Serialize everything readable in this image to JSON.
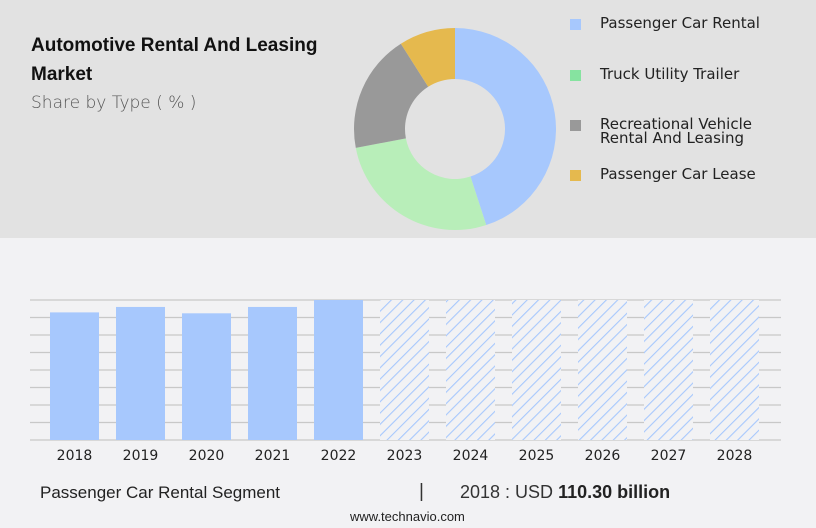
{
  "header": {
    "title": "Automotive Rental And Leasing Market",
    "subtitle": "Share by Type ( % )"
  },
  "legend": [
    {
      "label": "Passenger Car Rental",
      "color": "#a7c8fd"
    },
    {
      "label": "Truck Utility Trailer",
      "color": "#86e3a0"
    },
    {
      "label": "Recreational Vehicle Rental And Leasing",
      "color": "#999999"
    },
    {
      "label": "Passenger Car Lease",
      "color": "#e5b94e"
    }
  ],
  "footer": {
    "segment": "Passenger Car Rental Segment",
    "separator": "|",
    "year_label": "2018 : USD",
    "value": "110.30 billion",
    "source": "www.technavio.com"
  },
  "chart_data": [
    {
      "type": "pie",
      "title": "Automotive Rental And Leasing Market",
      "subtitle": "Share by Type ( % )",
      "donut": true,
      "categories": [
        "Passenger Car Rental",
        "Truck Utility Trailer",
        "Recreational Vehicle Rental And Leasing",
        "Passenger Car Lease"
      ],
      "values": [
        45,
        27,
        19,
        9
      ],
      "colors": [
        "#a7c8fd",
        "#b8eeb9",
        "#999999",
        "#e5b94e"
      ],
      "legend_position": "right"
    },
    {
      "type": "bar",
      "title": "Passenger Car Rental Segment",
      "categories": [
        "2018",
        "2019",
        "2020",
        "2021",
        "2022",
        "2023",
        "2024",
        "2025",
        "2026",
        "2027",
        "2028"
      ],
      "values": [
        110.3,
        115.0,
        109.5,
        115.0,
        121.0,
        null,
        null,
        null,
        null,
        null,
        null
      ],
      "forecast": [
        false,
        false,
        false,
        false,
        false,
        true,
        true,
        true,
        true,
        true,
        true
      ],
      "annotation": "2018 : USD 110.30 billion",
      "xlabel": "",
      "ylabel": "",
      "grid": true,
      "color": "#a7c8fd"
    }
  ]
}
